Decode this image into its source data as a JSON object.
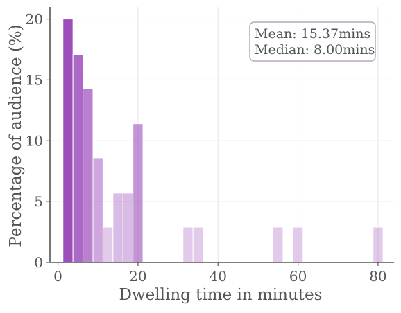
{
  "chart_data": {
    "type": "bar",
    "title": "",
    "xlabel": "Dwelling time in minutes",
    "ylabel": "Percentage of audience (%)",
    "xlim": [
      -2,
      84
    ],
    "ylim": [
      0,
      21
    ],
    "xticks": [
      0,
      20,
      40,
      60,
      80
    ],
    "yticks": [
      0,
      5,
      10,
      15,
      20
    ],
    "grid": true,
    "bin_width": 2.5,
    "bins": [
      {
        "start": 1.25,
        "value": 20.0,
        "opacity": 1.0
      },
      {
        "start": 3.75,
        "value": 17.1,
        "opacity": 0.85
      },
      {
        "start": 6.25,
        "value": 14.3,
        "opacity": 0.72
      },
      {
        "start": 8.75,
        "value": 8.6,
        "opacity": 0.5
      },
      {
        "start": 11.25,
        "value": 2.9,
        "opacity": 0.3
      },
      {
        "start": 13.75,
        "value": 5.7,
        "opacity": 0.38
      },
      {
        "start": 16.25,
        "value": 5.7,
        "opacity": 0.38
      },
      {
        "start": 18.75,
        "value": 11.4,
        "opacity": 0.6
      },
      {
        "start": 31.25,
        "value": 2.9,
        "opacity": 0.3
      },
      {
        "start": 33.75,
        "value": 2.9,
        "opacity": 0.3
      },
      {
        "start": 53.75,
        "value": 2.9,
        "opacity": 0.3
      },
      {
        "start": 58.75,
        "value": 2.9,
        "opacity": 0.3
      },
      {
        "start": 78.75,
        "value": 2.9,
        "opacity": 0.3
      }
    ],
    "bar_color": "#9c4fbb",
    "annotation": {
      "mean": "Mean: 15.37mins",
      "median": "Median: 8.00mins",
      "placement": "top-right"
    }
  }
}
